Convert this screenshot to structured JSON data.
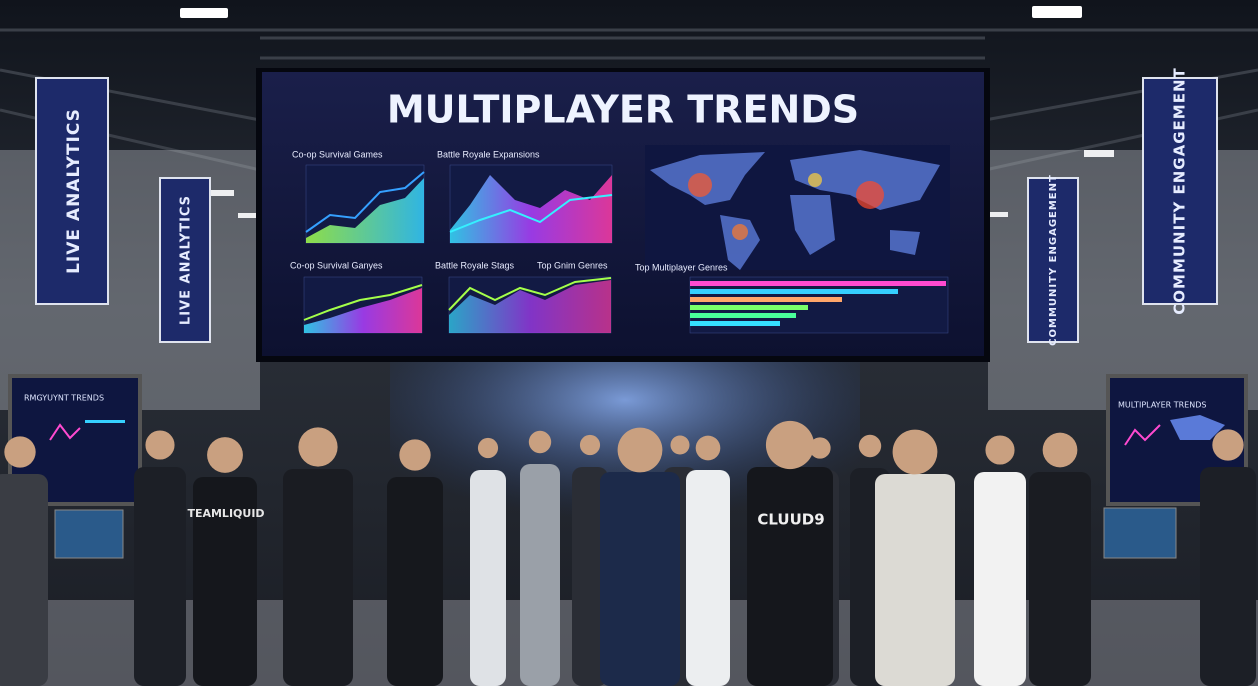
{
  "screen": {
    "title": "MULTIPLAYER TRENDS",
    "panels": [
      {
        "title": "Co-op Survival Games"
      },
      {
        "title": "Battle Royale Expansions"
      },
      {
        "title": "Co-op Survival Ganyes"
      },
      {
        "title": "Battle Royale Stags"
      },
      {
        "title": "Top Gnim Genres"
      },
      {
        "title": "Top Multiplayer Genres"
      }
    ]
  },
  "banners": [
    "LIVE ANALYTICS",
    "LIVE ANALYTICS",
    "COMMUNITY ENGAGEMENT",
    "COMMUNITY ENGAGEMENT"
  ],
  "side_screens": {
    "left_title": "RMGYUYNT TRENDS",
    "right_title": "MULTIPLAYER TRENDS"
  },
  "apparel": [
    "TEAMLIQUID",
    "CLUUD9"
  ]
}
